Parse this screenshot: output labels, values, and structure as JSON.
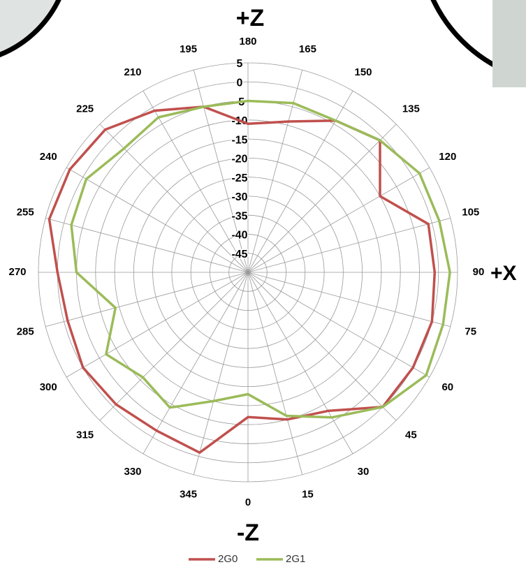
{
  "chart_data": {
    "type": "polar",
    "annotations": {
      "top": "+Z",
      "bottom": "-Z",
      "right": "+X"
    },
    "theta": [
      0,
      15,
      30,
      45,
      60,
      75,
      90,
      105,
      120,
      135,
      150,
      165,
      180,
      195,
      210,
      225,
      240,
      255,
      270,
      285,
      300,
      315,
      330,
      345
    ],
    "series": [
      {
        "name": "2G0",
        "color": "#c0504d",
        "values": [
          -12,
          -10,
          -8,
          0,
          0,
          0,
          -1,
          -1,
          -10,
          -1,
          -4,
          -9,
          -11,
          -5,
          -1,
          3,
          4,
          4,
          0,
          -1,
          0,
          -1,
          -2,
          -1
        ]
      },
      {
        "name": "2G1",
        "color": "#9bbb59",
        "values": [
          -18,
          -11,
          -6,
          0,
          4,
          3,
          3,
          2,
          2,
          -1,
          -4,
          -4,
          -5,
          -5,
          -3,
          -4,
          -1,
          -2,
          -5,
          -14,
          -7,
          -11,
          -9,
          -15
        ]
      }
    ],
    "rlim": [
      -50,
      5
    ],
    "rticks": [
      5,
      0,
      -5,
      -10,
      -15,
      -20,
      -25,
      -30,
      -35,
      -40,
      -45
    ],
    "grid": true
  }
}
